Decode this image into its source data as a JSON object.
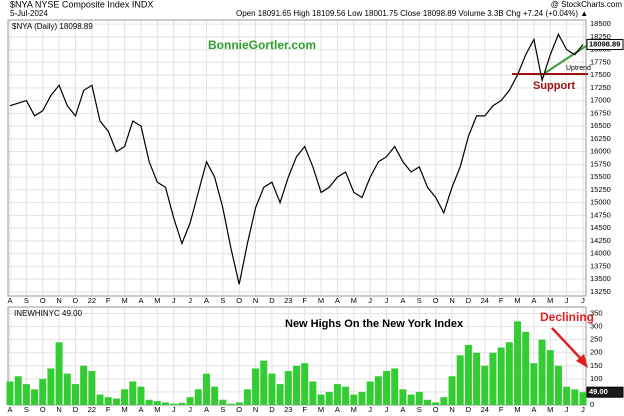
{
  "chart_data": [
    {
      "type": "line",
      "title": "$NYA NYSE Composite Index INDX",
      "subtitle": "5-Jul-2024",
      "info": "Open 18091.65  High 18109.56  Low 18001.75  Close 18098.89  Volume 3.3B  Chg +7.24 (+0.04%) ▲",
      "source": "@ StockCharts.com",
      "legend": "$NYA (Daily) 18098.89",
      "watermark": "BonnieGortler.com",
      "annotations": [
        "Uptrend",
        "Support"
      ],
      "last_value_label": "18098.89",
      "color": "#000000",
      "categories": [
        "A",
        null,
        "S",
        null,
        "O",
        null,
        "N",
        null,
        "D",
        null,
        "22",
        null,
        "F",
        null,
        "M",
        null,
        "A",
        null,
        "M",
        null,
        "J",
        null,
        "J",
        null,
        "A",
        null,
        "S",
        null,
        "O",
        null,
        "N",
        null,
        "D",
        null,
        "23",
        null,
        "F",
        null,
        "M",
        null,
        "A",
        null,
        "M",
        null,
        "J",
        null,
        "J",
        null,
        "A",
        null,
        "S",
        null,
        "O",
        null,
        "N",
        null,
        "D",
        null,
        "24",
        null,
        "F",
        null,
        "M",
        null,
        "A",
        null,
        "M",
        null,
        "J",
        null,
        "J"
      ],
      "values": [
        16900,
        16950,
        17000,
        16700,
        16800,
        17100,
        17300,
        16900,
        16700,
        17200,
        17300,
        16600,
        16400,
        16000,
        16100,
        16600,
        16500,
        15800,
        15400,
        15300,
        14700,
        14200,
        14600,
        15200,
        15800,
        15500,
        14900,
        14100,
        13400,
        14200,
        14900,
        15300,
        15400,
        15000,
        15500,
        15900,
        16100,
        15700,
        15200,
        15300,
        15500,
        15600,
        15200,
        15100,
        15500,
        15800,
        15900,
        16100,
        15800,
        15600,
        15700,
        15300,
        15100,
        14800,
        15300,
        15700,
        16300,
        16700,
        16700,
        16900,
        17000,
        17200,
        17500,
        17900,
        18200,
        17400,
        17900,
        18300,
        18000,
        17900,
        18099
      ],
      "ylim": [
        13170,
        18580
      ],
      "yticks": [
        13250,
        13500,
        13750,
        14000,
        14250,
        14500,
        14750,
        15000,
        15250,
        15500,
        15750,
        16000,
        16250,
        16500,
        16750,
        17000,
        17250,
        17500,
        17750,
        18000,
        18250,
        18500
      ],
      "grid": true
    },
    {
      "type": "bar",
      "legend": "INEWHINYC 49.00",
      "title": "New Highs On the New York Index",
      "annotations": [
        "Declining"
      ],
      "last_value_label": "49.00",
      "color": "#33cc33",
      "categories": [
        "A",
        null,
        "S",
        null,
        "O",
        null,
        "N",
        null,
        "D",
        null,
        "22",
        null,
        "F",
        null,
        "M",
        null,
        "A",
        null,
        "M",
        null,
        "J",
        null,
        "J",
        null,
        "A",
        null,
        "S",
        null,
        "O",
        null,
        "N",
        null,
        "D",
        null,
        "23",
        null,
        "F",
        null,
        "M",
        null,
        "A",
        null,
        "M",
        null,
        "J",
        null,
        "J",
        null,
        "A",
        null,
        "S",
        null,
        "O",
        null,
        "N",
        null,
        "D",
        null,
        "24",
        null,
        "F",
        null,
        "M",
        null,
        "A",
        null,
        "M",
        null,
        "J",
        null,
        "J"
      ],
      "values": [
        90,
        110,
        80,
        60,
        100,
        140,
        240,
        120,
        80,
        150,
        130,
        40,
        30,
        25,
        60,
        90,
        70,
        20,
        15,
        10,
        5,
        8,
        30,
        60,
        120,
        70,
        20,
        5,
        10,
        60,
        140,
        170,
        120,
        80,
        130,
        150,
        160,
        90,
        40,
        50,
        80,
        70,
        40,
        50,
        90,
        110,
        130,
        140,
        60,
        40,
        50,
        20,
        10,
        30,
        110,
        190,
        230,
        200,
        150,
        200,
        220,
        240,
        320,
        280,
        160,
        250,
        210,
        150,
        70,
        60,
        49
      ],
      "ylim": [
        0,
        375
      ],
      "yticks": [
        0,
        50,
        100,
        150,
        200,
        250,
        300,
        350
      ],
      "grid": true
    }
  ]
}
